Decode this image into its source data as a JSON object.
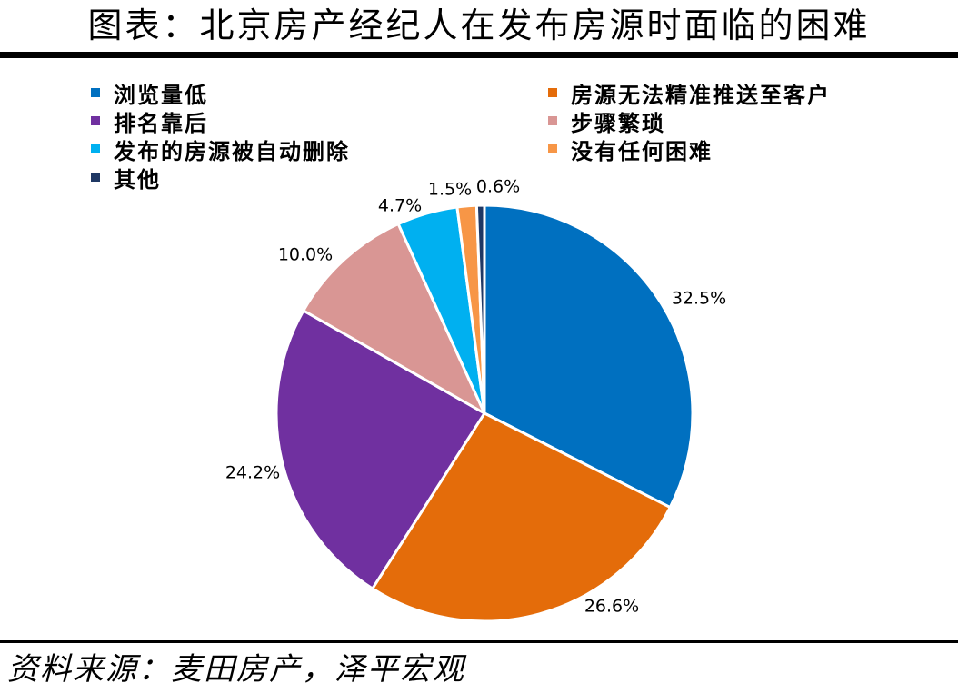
{
  "title": "图表：北京房产经纪人在发布房源时面临的困难",
  "source": "资料来源：麦田房产，泽平宏观",
  "chart_data": {
    "type": "pie",
    "title": "",
    "legend_position": "top",
    "slices": [
      {
        "label": "浏览量低",
        "value": 32.5,
        "value_label": "32.5%",
        "color": "#0070C0"
      },
      {
        "label": "房源无法精准推送至客户",
        "value": 26.6,
        "value_label": "26.6%",
        "color": "#E46C0A"
      },
      {
        "label": "排名靠后",
        "value": 24.2,
        "value_label": "24.2%",
        "color": "#7030A0"
      },
      {
        "label": "步骤繁琐",
        "value": 10.0,
        "value_label": "10.0%",
        "color": "#D99694"
      },
      {
        "label": "发布的房源被自动删除",
        "value": 4.7,
        "value_label": "4.7%",
        "color": "#00B0F0"
      },
      {
        "label": "没有任何困难",
        "value": 1.5,
        "value_label": "1.5%",
        "color": "#F79646"
      },
      {
        "label": "其他",
        "value": 0.6,
        "value_label": "0.6%",
        "color": "#1F3864"
      }
    ]
  }
}
